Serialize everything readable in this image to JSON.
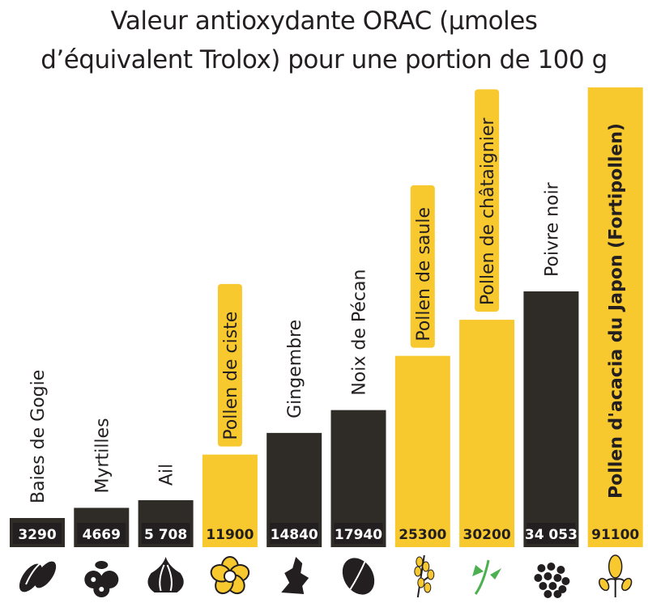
{
  "chart_data": {
    "type": "bar",
    "title_lines": [
      "Valeur antioxydante ORAC (µmoles",
      "d’équivalent Trolox) pour une portion de 100 g"
    ],
    "categories": [
      "Baies de Gogie",
      "Myrtilles",
      "Ail",
      "Pollen de ciste",
      "Gingembre",
      "Noix de Pécan",
      "Pollen de saule",
      "Pollen de châtaignier",
      "Poivre noir",
      "Pollen d'acacia du Japon (Fortipollen)"
    ],
    "values": [
      3290,
      4669,
      5708,
      11900,
      14840,
      17940,
      25300,
      30200,
      34053,
      91100
    ],
    "value_labels": [
      "3290",
      "4669",
      "5 708",
      "11900",
      "14840",
      "17940",
      "25300",
      "30200",
      "34 053",
      "91100"
    ],
    "is_pollen": [
      false,
      false,
      false,
      true,
      false,
      false,
      true,
      true,
      false,
      true
    ],
    "icons": [
      "goji-berry-icon",
      "blueberry-icon",
      "garlic-icon",
      "cistus-flower-icon",
      "ginger-icon",
      "pecan-nut-icon",
      "willow-branch-icon",
      "chestnut-flower-icon",
      "black-pepper-icon",
      "acacia-pollen-icon"
    ],
    "colors": {
      "pollen": "#f8c92f",
      "other": "#2f2b26"
    },
    "xlabel": "",
    "ylabel": ""
  }
}
